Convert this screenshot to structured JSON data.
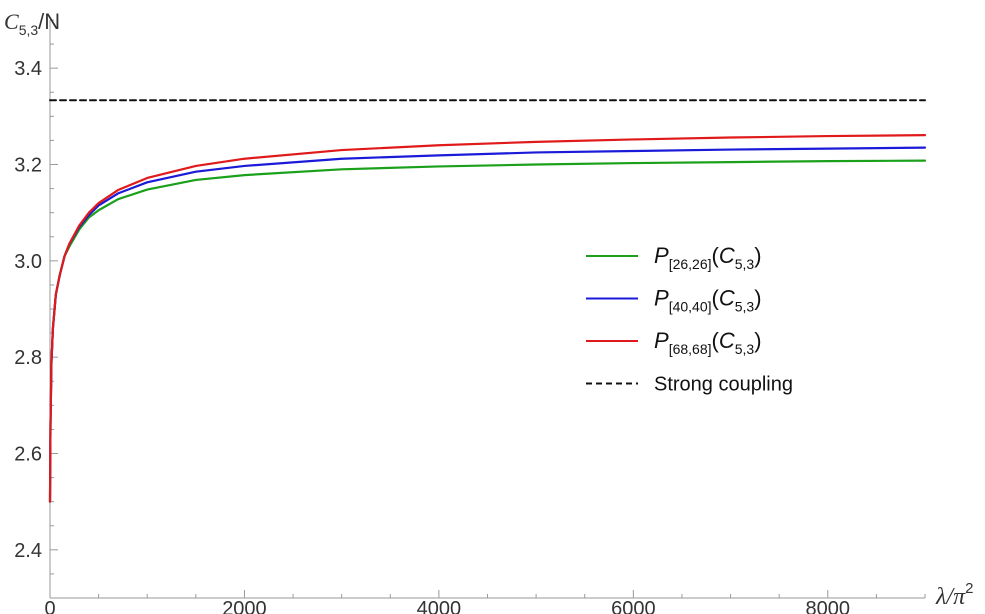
{
  "chart_data": {
    "type": "line",
    "ylabel": {
      "main": "C",
      "sub": "5,3",
      "suffix": "/N"
    },
    "xlabel": {
      "main": "λ/π",
      "sup": "2"
    },
    "xlim": [
      0,
      9000
    ],
    "ylim": [
      2.3,
      3.5
    ],
    "xticks": [
      0,
      2000,
      4000,
      6000,
      8000
    ],
    "yticks": [
      2.4,
      2.6,
      2.8,
      3.0,
      3.2,
      3.4
    ],
    "ytick_labels": [
      "2.4",
      "2.6",
      "2.8",
      "3.0",
      "3.2",
      "3.4"
    ],
    "grid": false,
    "legend_position": "right",
    "series": [
      {
        "name": "P[26,26](C5,3)",
        "legend": {
          "p": "P",
          "sub": "[26,26]",
          "open": "(",
          "c": "C",
          "csub": "5,3",
          "close": ")"
        },
        "color": "#1aa01a",
        "x": [
          0,
          5,
          15,
          30,
          60,
          100,
          150,
          200,
          300,
          400,
          500,
          700,
          1000,
          1500,
          2000,
          3000,
          4000,
          5000,
          6000,
          7000,
          8000,
          9000
        ],
        "y": [
          2.5,
          2.66,
          2.79,
          2.86,
          2.93,
          2.97,
          3.01,
          3.03,
          3.065,
          3.09,
          3.105,
          3.128,
          3.148,
          3.168,
          3.178,
          3.19,
          3.196,
          3.2,
          3.203,
          3.205,
          3.207,
          3.208
        ]
      },
      {
        "name": "P[40,40](C5,3)",
        "legend": {
          "p": "P",
          "sub": "[40,40]",
          "open": "(",
          "c": "C",
          "csub": "5,3",
          "close": ")"
        },
        "color": "#1a1ad8",
        "x": [
          0,
          5,
          15,
          30,
          60,
          100,
          150,
          200,
          300,
          400,
          500,
          700,
          1000,
          1500,
          2000,
          3000,
          4000,
          5000,
          6000,
          7000,
          8000,
          9000
        ],
        "y": [
          2.5,
          2.66,
          2.79,
          2.86,
          2.93,
          2.97,
          3.01,
          3.035,
          3.07,
          3.095,
          3.115,
          3.14,
          3.163,
          3.185,
          3.197,
          3.212,
          3.219,
          3.225,
          3.228,
          3.231,
          3.233,
          3.235
        ]
      },
      {
        "name": "P[68,68](C5,3)",
        "legend": {
          "p": "P",
          "sub": "[68,68]",
          "open": "(",
          "c": "C",
          "csub": "5,3",
          "close": ")"
        },
        "color": "#e01a1a",
        "x": [
          0,
          5,
          15,
          30,
          60,
          100,
          150,
          200,
          300,
          400,
          500,
          700,
          1000,
          1500,
          2000,
          3000,
          4000,
          5000,
          6000,
          7000,
          8000,
          9000
        ],
        "y": [
          2.5,
          2.66,
          2.79,
          2.86,
          2.93,
          2.97,
          3.01,
          3.036,
          3.073,
          3.1,
          3.12,
          3.147,
          3.172,
          3.197,
          3.212,
          3.23,
          3.24,
          3.247,
          3.252,
          3.256,
          3.259,
          3.261
        ]
      },
      {
        "name": "Strong coupling",
        "legend": {
          "text": "Strong coupling"
        },
        "color": "#111111",
        "dashed": true,
        "x": [
          0,
          9000
        ],
        "y": [
          3.3333,
          3.3333
        ]
      }
    ]
  }
}
